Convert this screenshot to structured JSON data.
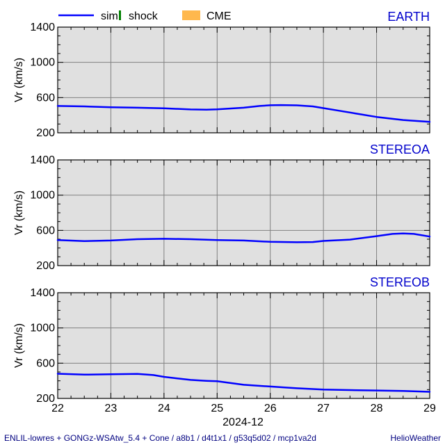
{
  "chart_data": {
    "type": "line",
    "legend": {
      "placement": "top",
      "items": [
        {
          "label": "sim",
          "color": "#0000ff",
          "symbol": "line"
        },
        {
          "label": "shock",
          "color": "#008000",
          "symbol": "bar"
        },
        {
          "label": "CME",
          "color": "#ffb84d",
          "symbol": "box"
        }
      ]
    },
    "x_ticks": [
      "22",
      "23",
      "24",
      "25",
      "26",
      "27",
      "28",
      "29"
    ],
    "xlim": [
      22,
      29
    ],
    "xlabel": "2024-12",
    "ylabel": "Vr (km/s)",
    "y_ticks": [
      200,
      600,
      1000,
      1400
    ],
    "ylim": [
      200,
      1400
    ],
    "grid": true,
    "panel_bg": "#e0e0e0",
    "line_color": "#0000ff",
    "title_color": "#0000cc",
    "panels": [
      {
        "title": "EARTH",
        "series": [
          {
            "name": "sim",
            "x": [
              22.0,
              22.5,
              23.0,
              23.5,
              24.0,
              24.5,
              24.8,
              25.0,
              25.5,
              25.8,
              26.0,
              26.2,
              26.5,
              26.8,
              27.0,
              27.3,
              27.6,
              28.0,
              28.5,
              29.0
            ],
            "y": [
              505,
              500,
              490,
              485,
              478,
              465,
              462,
              466,
              485,
              505,
              513,
              515,
              512,
              500,
              480,
              450,
              420,
              380,
              345,
              325
            ]
          }
        ]
      },
      {
        "title": "STEREOA",
        "series": [
          {
            "name": "sim",
            "x": [
              22.0,
              22.5,
              23.0,
              23.5,
              24.0,
              24.5,
              25.0,
              25.5,
              26.0,
              26.5,
              26.8,
              27.0,
              27.5,
              28.0,
              28.3,
              28.5,
              28.7,
              29.0
            ],
            "y": [
              490,
              478,
              485,
              500,
              505,
              500,
              490,
              485,
              470,
              465,
              468,
              480,
              495,
              535,
              560,
              565,
              560,
              530
            ]
          }
        ]
      },
      {
        "title": "STEREOB",
        "series": [
          {
            "name": "sim",
            "x": [
              22.0,
              22.5,
              23.0,
              23.5,
              23.8,
              24.0,
              24.5,
              24.8,
              25.0,
              25.5,
              26.0,
              26.5,
              27.0,
              27.5,
              28.0,
              28.5,
              29.0
            ],
            "y": [
              480,
              470,
              475,
              478,
              465,
              445,
              410,
              400,
              395,
              355,
              335,
              315,
              300,
              295,
              290,
              285,
              275
            ]
          }
        ]
      }
    ]
  },
  "footer": {
    "left": "ENLIL-lowres + GONGz-WSAtw_5.4 + Cone / a8b1 / d4t1x1 / g53q5d02 / mcp1va2d",
    "right": "HelioWeather"
  }
}
